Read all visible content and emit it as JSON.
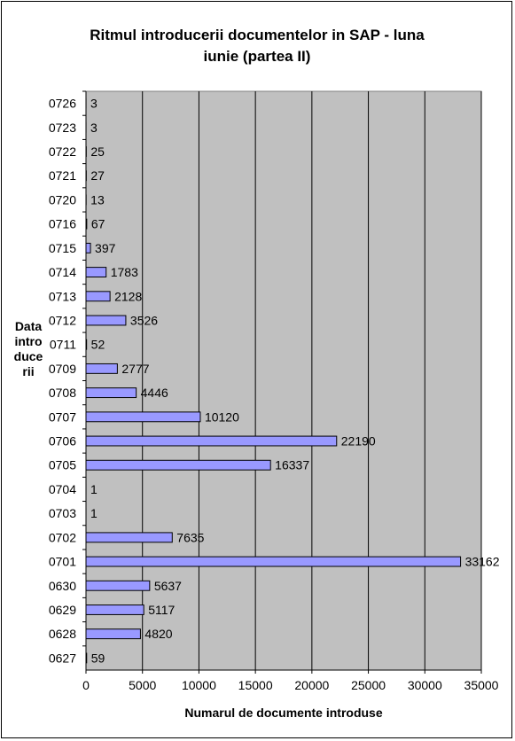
{
  "chart_data": {
    "type": "bar",
    "orientation": "horizontal",
    "title_line1": "Ritmul introducerii documentelor in SAP - luna",
    "title_line2": "iunie (partea II)",
    "xlabel": "Numarul de documente introduse",
    "ylabel": "Data introducerii",
    "categories": [
      "0726",
      "0723",
      "0722",
      "0721",
      "0720",
      "0716",
      "0715",
      "0714",
      "0713",
      "0712",
      "0711",
      "0709",
      "0708",
      "0707",
      "0706",
      "0705",
      "0704",
      "0703",
      "0702",
      "0701",
      "0630",
      "0629",
      "0628",
      "0627"
    ],
    "values": [
      3,
      3,
      25,
      27,
      13,
      67,
      397,
      1783,
      2128,
      3526,
      52,
      2777,
      4446,
      10120,
      22190,
      16337,
      1,
      1,
      7635,
      33162,
      5637,
      5117,
      4820,
      59
    ],
    "xlim": [
      0,
      35000
    ],
    "xticks": [
      0,
      5000,
      10000,
      15000,
      20000,
      25000,
      30000,
      35000
    ],
    "grid": true,
    "legend": "none",
    "colors": {
      "bar": "#9999ff",
      "plot_background": "#c0c0c0",
      "gridline": "#000000"
    }
  }
}
